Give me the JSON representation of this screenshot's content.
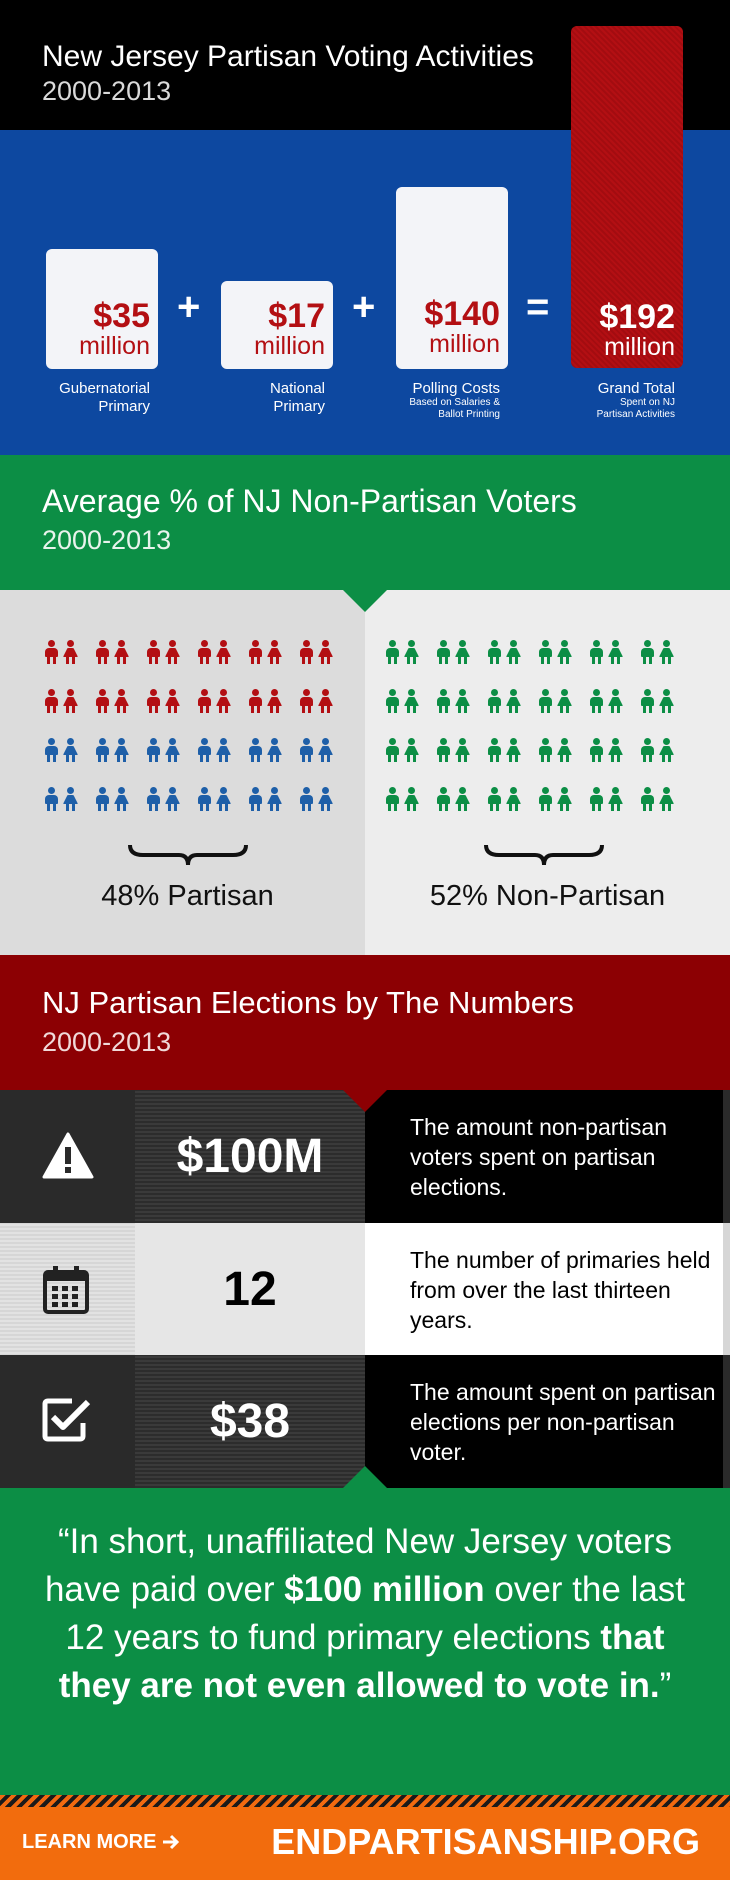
{
  "costs": {
    "title": "New Jersey Partisan Voting Activities",
    "years": "2000-2013",
    "items": [
      {
        "amount": "$35",
        "unit": "million",
        "caption": "Gubernatorial\nPrimary",
        "note": ""
      },
      {
        "amount": "$17",
        "unit": "million",
        "caption": "National\nPrimary",
        "note": ""
      },
      {
        "amount": "$140",
        "unit": "million",
        "caption": "Polling Costs",
        "note": "Based on Salaries &\nBallot Printing"
      }
    ],
    "plus": "+",
    "equals": "=",
    "total": {
      "amount": "$192",
      "unit": "million",
      "caption": "Grand Total",
      "note": "Spent on NJ\nPartisan Activities"
    },
    "colors": {
      "header": "#000000",
      "body": "#0d48a0",
      "accent": "#b30f13"
    }
  },
  "voters": {
    "title": "Average % of NJ Non-Partisan Voters",
    "years": "2000-2013",
    "partisan_label": "48% Partisan",
    "non_partisan_label": "52% Non-Partisan",
    "partisan_share": 48,
    "non_partisan_share": 52,
    "grid": {
      "rows": 4,
      "pairs_per_row": 6
    },
    "colors": {
      "republican": "#b30f13",
      "democrat": "#1e5fa8",
      "non_partisan": "#0c8e45"
    }
  },
  "numbers": {
    "title": "NJ Partisan Elections by The Numbers",
    "years": "2000-2013",
    "rows": [
      {
        "icon": "warning-icon",
        "value": "$100M",
        "description": "The amount non-partisan voters spent on partisan elections."
      },
      {
        "icon": "calendar-icon",
        "value": "12",
        "description": "The number of primaries held from over the last thirteen years."
      },
      {
        "icon": "checkbox-icon",
        "value": "$38",
        "description": "The amount spent on partisan elections per non-partisan voter."
      }
    ]
  },
  "quote": {
    "open": "“In short, unaffiliated New Jersey voters have paid over ",
    "bold1": "$100 million",
    "middle": " over the last 12 years to fund primary elections ",
    "bold2": "that they are not even allowed to vote in.",
    "close": "”"
  },
  "footer": {
    "learn_more": "LEARN MORE",
    "site": "ENDPARTISANSHIP.ORG",
    "color": "#f26c0d"
  }
}
